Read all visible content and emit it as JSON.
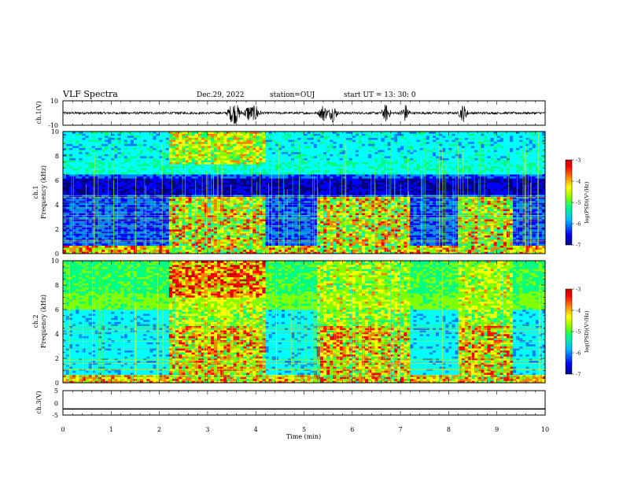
{
  "header": {
    "title": "VLF Spectra",
    "date": "Dec.29, 2022",
    "station": "station=OUJ",
    "start": "start  UT  =  13: 30: 0"
  },
  "chart_data": [
    {
      "type": "line",
      "ylabel": "ch.1(V)",
      "ylim": [
        -10,
        10
      ],
      "y_ticks": [
        "10",
        "-10"
      ],
      "xlim": [
        0,
        10
      ],
      "baseline": 0,
      "bursts_min": [
        3.5,
        3.6,
        3.85,
        4.0,
        5.4,
        5.6,
        6.7,
        7.1,
        8.3
      ]
    },
    {
      "type": "heatmap",
      "ylabel_line1": "ch.1",
      "ylabel_line2": "Frequency (kHz)",
      "ylim": [
        0,
        10
      ],
      "y_ticks": [
        "0",
        "2",
        "4",
        "6",
        "8",
        "10"
      ],
      "xlim": [
        0,
        10
      ],
      "colorbar_label": "log(PSD)(V²/Hz)",
      "colorbar_ticks": [
        "-3",
        "-4",
        "-5",
        "-6",
        "-7"
      ],
      "active_intervals_min": [
        [
          2.2,
          4.2
        ],
        [
          5.3,
          7.2
        ],
        [
          8.2,
          9.3
        ]
      ]
    },
    {
      "type": "heatmap",
      "ylabel_line1": "ch.2",
      "ylabel_line2": "Frequency (kHz)",
      "ylim": [
        0,
        10
      ],
      "y_ticks": [
        "0",
        "2",
        "4",
        "6",
        "8",
        "10"
      ],
      "xlim": [
        0,
        10
      ],
      "colorbar_label": "log(PSD)(V²/Hz)",
      "colorbar_ticks": [
        "-3",
        "-4",
        "-5",
        "-6",
        "-7"
      ],
      "active_intervals_min": [
        [
          2.2,
          4.2
        ],
        [
          5.3,
          7.2
        ],
        [
          8.2,
          9.3
        ]
      ]
    },
    {
      "type": "line",
      "ylabel": "ch.3(V)",
      "ylim": [
        -5,
        5
      ],
      "y_ticks": [
        "5",
        "0",
        "-5"
      ],
      "xlim": [
        0,
        10
      ],
      "value": -2.5
    }
  ],
  "xaxis": {
    "label": "Time (min)",
    "ticks": [
      "0",
      "1",
      "2",
      "3",
      "4",
      "5",
      "6",
      "7",
      "8",
      "9",
      "10"
    ]
  },
  "colors": {
    "colormap": [
      "#00007f",
      "#0000ff",
      "#0080ff",
      "#00ffff",
      "#00ff80",
      "#80ff00",
      "#ffff00",
      "#ff8000",
      "#ff0000",
      "#bf0000"
    ],
    "background": "#00008b"
  }
}
